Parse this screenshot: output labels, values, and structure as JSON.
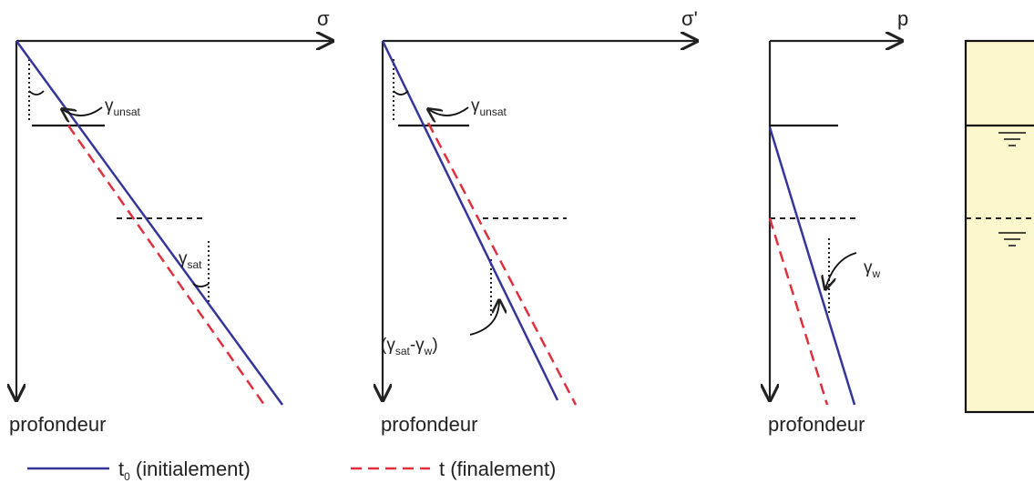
{
  "panels": [
    {
      "axis_label": "σ",
      "depth_label": "profondeur",
      "annotations": [
        [
          "γ",
          "unsat"
        ],
        [
          "γ",
          "sat"
        ]
      ]
    },
    {
      "axis_label": "σ'",
      "depth_label": "profondeur",
      "annotations": [
        [
          "γ",
          "unsat"
        ],
        [
          "(γ",
          "sat",
          "-γ",
          "w",
          ")"
        ]
      ]
    },
    {
      "axis_label": "p",
      "depth_label": "profondeur",
      "annotations": [
        [
          "γ",
          "w"
        ]
      ]
    }
  ],
  "legend": [
    [
      "t",
      "0",
      " (initialement)"
    ],
    [
      "t (finalement)"
    ]
  ]
}
